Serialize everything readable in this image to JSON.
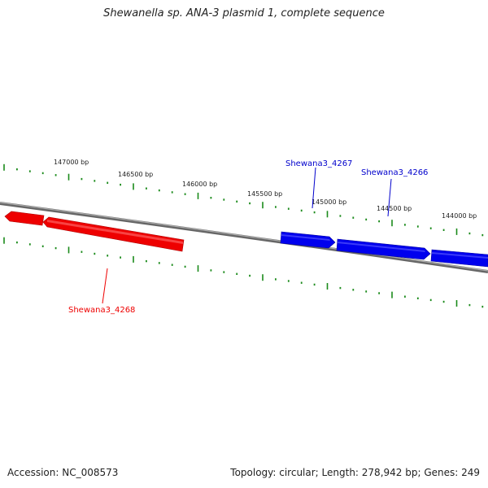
{
  "title": "Shewanella sp. ANA-3 plasmid 1, complete sequence",
  "footer": {
    "accession": "Accession: NC_008573",
    "summary": "Topology: circular; Length: 278,942 bp; Genes: 249"
  },
  "colors": {
    "backbone": "#808080",
    "tick": "#1a8a1a",
    "forward_gene": "#0000ee",
    "reverse_gene": "#ee0000"
  },
  "scale_labels": [
    "147000 bp",
    "146500 bp",
    "146000 bp",
    "145500 bp",
    "145000 bp",
    "144500 bp",
    "144000 bp"
  ],
  "genes": [
    {
      "name": "Shewana3_4268",
      "strand": "reverse"
    },
    {
      "name": "Shewana3_4267",
      "strand": "forward"
    },
    {
      "name": "Shewana3_4266",
      "strand": "forward"
    }
  ]
}
